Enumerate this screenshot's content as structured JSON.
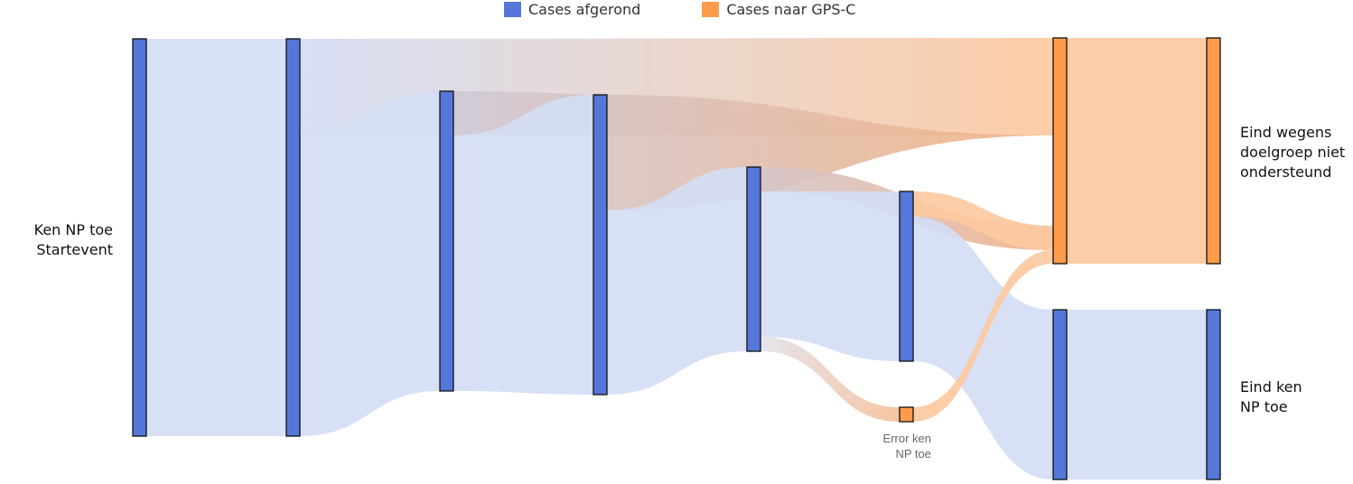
{
  "legend": [
    {
      "label": "Cases afgerond",
      "color": "#5577D9"
    },
    {
      "label": "Cases naar GPS-C",
      "color": "#FF9B4A"
    }
  ],
  "colors": {
    "blue_node": "#5577D9",
    "orange_node": "#FF9B4A",
    "blue_link": "#D4DDF4",
    "orange_link": "#FCC9A0",
    "node_border": "#111111"
  },
  "nodes": [
    {
      "id": "start",
      "lines": [
        "Ken NP toe",
        "Startevent"
      ],
      "color": "blue"
    },
    {
      "id": "n2",
      "lines": [],
      "color": "blue"
    },
    {
      "id": "n3",
      "lines": [],
      "color": "blue"
    },
    {
      "id": "n4",
      "lines": [],
      "color": "blue"
    },
    {
      "id": "n5",
      "lines": [],
      "color": "blue"
    },
    {
      "id": "n6",
      "lines": [],
      "color": "blue"
    },
    {
      "id": "error",
      "lines": [
        "Error ken",
        "NP toe"
      ],
      "color": "orange"
    },
    {
      "id": "gps_mid",
      "lines": [],
      "color": "orange"
    },
    {
      "id": "done_mid",
      "lines": [],
      "color": "blue"
    },
    {
      "id": "eind_doelgroep",
      "lines": [
        "Eind wegens",
        "doelgroep niet",
        "ondersteund"
      ],
      "color": "orange"
    },
    {
      "id": "eind_ken",
      "lines": [
        "Eind ken",
        "NP toe"
      ],
      "color": "blue"
    }
  ]
}
